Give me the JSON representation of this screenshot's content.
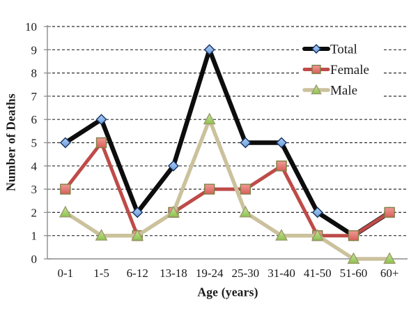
{
  "chart_data": {
    "type": "line",
    "title": "",
    "xlabel": "Age (years)",
    "ylabel": "Number of Deaths",
    "categories": [
      "0-1",
      "1-5",
      "6-12",
      "13-18",
      "19-24",
      "25-30",
      "31-40",
      "41-50",
      "51-60",
      "60+"
    ],
    "series": [
      {
        "name": "Total",
        "values": [
          5,
          6,
          2,
          4,
          9,
          5,
          5,
          2,
          1,
          2
        ],
        "line_color": "#0d0d0d",
        "line_width": 6.5,
        "marker": "diamond",
        "marker_fill": "#6d9be0",
        "marker_fill_light": "#abcdf4",
        "marker_stroke": "#16325c"
      },
      {
        "name": "Female",
        "values": [
          3,
          5,
          1,
          2,
          3,
          3,
          4,
          1,
          1,
          2
        ],
        "line_color": "#be4b48",
        "line_width": 5,
        "marker": "square",
        "marker_fill": "#d95f5b",
        "marker_fill_light": "#f09b95",
        "marker_stroke": "#7f7f45"
      },
      {
        "name": "Male",
        "values": [
          2,
          1,
          1,
          2,
          6,
          2,
          1,
          1,
          0,
          0
        ],
        "line_color": "#cbc29d",
        "line_width": 5.5,
        "marker": "triangle",
        "marker_fill": "#8dc24d",
        "marker_fill_light": "#c8e69c",
        "marker_stroke": "#9a9a6b"
      }
    ],
    "ylim": [
      0,
      10
    ],
    "yticks": [
      0,
      1,
      2,
      3,
      4,
      5,
      6,
      7,
      8,
      9,
      10
    ],
    "grid": "dashed-horizontal",
    "legend_position": "upper-right-inside"
  },
  "style_colors": {
    "background": "#ffffff",
    "axis_line": "#8c8c8c",
    "grid_line": "#2b2b2b",
    "text": "#1a1a1a",
    "legend_background": "#ffffff"
  }
}
